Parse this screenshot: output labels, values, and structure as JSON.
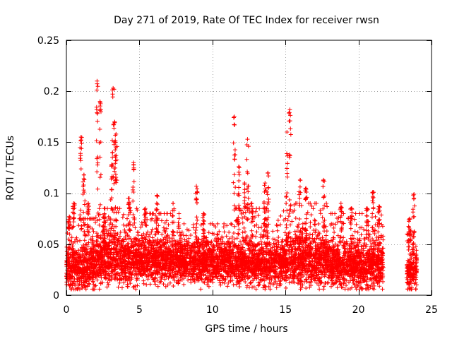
{
  "chart_data": {
    "type": "scatter",
    "title": "Day 271 of 2019, Rate Of TEC Index for receiver rwsn",
    "xlabel": "GPS time / hours",
    "ylabel": "ROTI / TECUs",
    "xlim": [
      0,
      25
    ],
    "ylim": [
      0,
      0.25
    ],
    "xticks": [
      0,
      5,
      10,
      15,
      20,
      25
    ],
    "xtick_labels": [
      "0",
      "5",
      "10",
      "15",
      "20",
      "25"
    ],
    "yticks": [
      0,
      0.05,
      0.1,
      0.15,
      0.2,
      0.25
    ],
    "ytick_labels": [
      "0",
      "0.05",
      "0.1",
      "0.15",
      "0.2",
      "0.25"
    ],
    "grid": true,
    "marker": "+",
    "color": "#ff0000",
    "data_gaps_hours": [
      [
        21.7,
        23.3
      ]
    ],
    "series": [
      {
        "name": "ROTI",
        "peaks": [
          {
            "x": 0.2,
            "y": 0.077
          },
          {
            "x": 0.5,
            "y": 0.09
          },
          {
            "x": 1.0,
            "y": 0.155
          },
          {
            "x": 1.2,
            "y": 0.118
          },
          {
            "x": 1.5,
            "y": 0.09
          },
          {
            "x": 2.1,
            "y": 0.21
          },
          {
            "x": 2.3,
            "y": 0.19
          },
          {
            "x": 2.6,
            "y": 0.08
          },
          {
            "x": 3.1,
            "y": 0.128
          },
          {
            "x": 3.2,
            "y": 0.203
          },
          {
            "x": 3.3,
            "y": 0.17
          },
          {
            "x": 3.4,
            "y": 0.158
          },
          {
            "x": 4.3,
            "y": 0.095
          },
          {
            "x": 4.6,
            "y": 0.13
          },
          {
            "x": 5.4,
            "y": 0.085
          },
          {
            "x": 6.2,
            "y": 0.098
          },
          {
            "x": 7.3,
            "y": 0.09
          },
          {
            "x": 8.9,
            "y": 0.107
          },
          {
            "x": 9.4,
            "y": 0.08
          },
          {
            "x": 11.5,
            "y": 0.175
          },
          {
            "x": 11.8,
            "y": 0.126
          },
          {
            "x": 12.2,
            "y": 0.11
          },
          {
            "x": 12.4,
            "y": 0.153
          },
          {
            "x": 12.7,
            "y": 0.09
          },
          {
            "x": 13.6,
            "y": 0.11
          },
          {
            "x": 13.8,
            "y": 0.12
          },
          {
            "x": 15.1,
            "y": 0.16
          },
          {
            "x": 15.3,
            "y": 0.182
          },
          {
            "x": 16.0,
            "y": 0.113
          },
          {
            "x": 16.4,
            "y": 0.105
          },
          {
            "x": 17.6,
            "y": 0.113
          },
          {
            "x": 18.8,
            "y": 0.09
          },
          {
            "x": 19.5,
            "y": 0.085
          },
          {
            "x": 20.6,
            "y": 0.085
          },
          {
            "x": 21.0,
            "y": 0.101
          },
          {
            "x": 21.4,
            "y": 0.087
          },
          {
            "x": 23.5,
            "y": 0.075
          },
          {
            "x": 23.8,
            "y": 0.099
          }
        ],
        "segments": [
          {
            "x0": 0.0,
            "x1": 2.0,
            "base": 0.028,
            "spread": 0.022,
            "max": 0.075
          },
          {
            "x0": 2.0,
            "x1": 5.0,
            "base": 0.035,
            "spread": 0.025,
            "max": 0.085
          },
          {
            "x0": 5.0,
            "x1": 8.0,
            "base": 0.035,
            "spread": 0.022,
            "max": 0.08
          },
          {
            "x0": 8.0,
            "x1": 11.5,
            "base": 0.033,
            "spread": 0.02,
            "max": 0.07
          },
          {
            "x0": 11.5,
            "x1": 15.0,
            "base": 0.032,
            "spread": 0.022,
            "max": 0.085
          },
          {
            "x0": 15.0,
            "x1": 18.0,
            "base": 0.034,
            "spread": 0.024,
            "max": 0.09
          },
          {
            "x0": 18.0,
            "x1": 21.7,
            "base": 0.03,
            "spread": 0.022,
            "max": 0.08
          },
          {
            "x0": 23.3,
            "x1": 24.0,
            "base": 0.025,
            "spread": 0.02,
            "max": 0.06
          }
        ]
      }
    ]
  }
}
